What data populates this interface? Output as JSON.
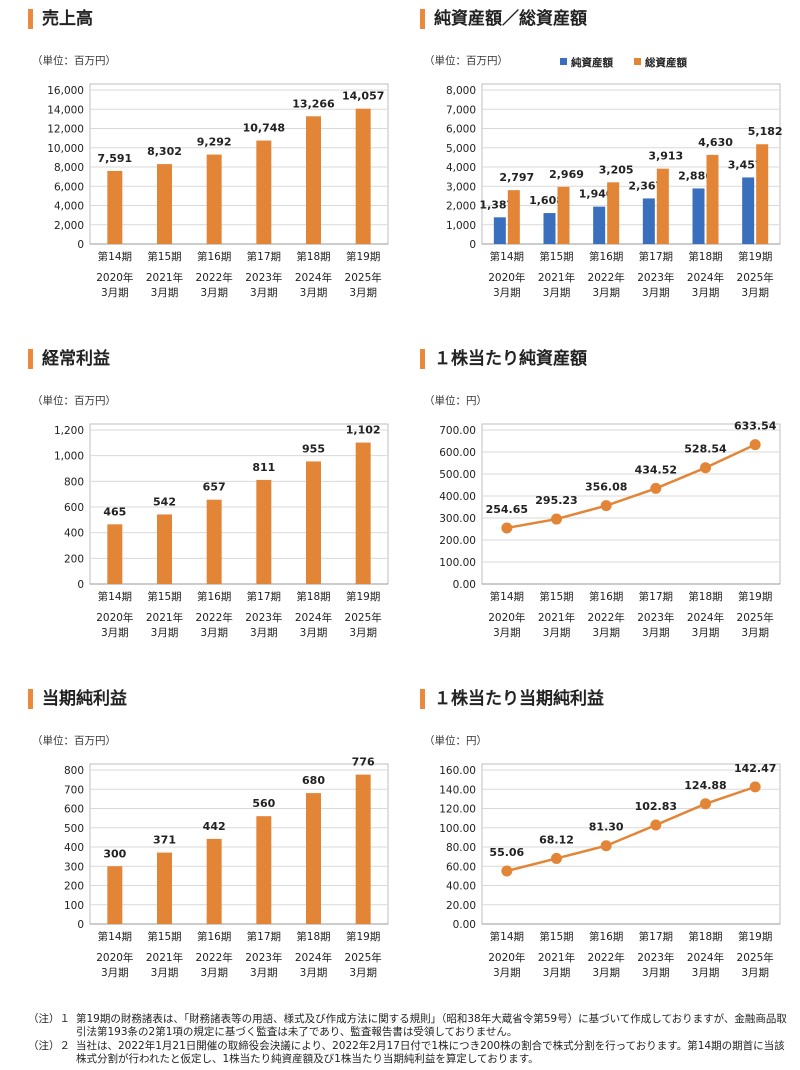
{
  "colors": {
    "orange": "#e38537",
    "blue": "#3a6fbe",
    "grid": "#d9d9d9",
    "axis": "#bfbfbf",
    "title_bar": "#e98a3c"
  },
  "chart_data": [
    {
      "type": "bar",
      "title": "売上高",
      "unit": "（単位：百万円）",
      "categories": [
        "第14期",
        "第15期",
        "第16期",
        "第17期",
        "第18期",
        "第19期"
      ],
      "category_sub1": [
        "2020年",
        "2021年",
        "2022年",
        "2023年",
        "2024年",
        "2025年"
      ],
      "category_sub2": [
        "3月期",
        "3月期",
        "3月期",
        "3月期",
        "3月期",
        "3月期"
      ],
      "series": [
        {
          "values": [
            7591,
            8302,
            9292,
            10748,
            13266,
            14057
          ],
          "labels": [
            "7,591",
            "8,302",
            "9,292",
            "10,748",
            "13,266",
            "14,057"
          ],
          "color": "#e38537"
        }
      ],
      "ylim": [
        0,
        16000
      ],
      "yticks": [
        "0",
        "2,000",
        "4,000",
        "6,000",
        "8,000",
        "10,000",
        "12,000",
        "14,000",
        "16,000"
      ],
      "grid": true
    },
    {
      "type": "bar",
      "title": "純資産額／総資産額",
      "unit": "（単位：百万円）",
      "categories": [
        "第14期",
        "第15期",
        "第16期",
        "第17期",
        "第18期",
        "第19期"
      ],
      "category_sub1": [
        "2020年",
        "2021年",
        "2022年",
        "2023年",
        "2024年",
        "2025年"
      ],
      "category_sub2": [
        "3月期",
        "3月期",
        "3月期",
        "3月期",
        "3月期",
        "3月期"
      ],
      "series": [
        {
          "name": "純資産額",
          "values": [
            1387,
            1608,
            1940,
            2367,
            2886,
            3457
          ],
          "labels": [
            "1,387",
            "1,608",
            "1,940",
            "2,367",
            "2,886",
            "3,457"
          ],
          "color": "#3a6fbe"
        },
        {
          "name": "総資産額",
          "values": [
            2797,
            2969,
            3205,
            3913,
            4630,
            5182
          ],
          "labels": [
            "2,797",
            "2,969",
            "3,205",
            "3,913",
            "4,630",
            "5,182"
          ],
          "color": "#e38537"
        }
      ],
      "ylim": [
        0,
        8000
      ],
      "yticks": [
        "0",
        "1,000",
        "2,000",
        "3,000",
        "4,000",
        "5,000",
        "6,000",
        "7,000",
        "8,000"
      ],
      "legend": "top",
      "grid": true
    },
    {
      "type": "bar",
      "title": "経常利益",
      "unit": "（単位：百万円）",
      "categories": [
        "第14期",
        "第15期",
        "第16期",
        "第17期",
        "第18期",
        "第19期"
      ],
      "category_sub1": [
        "2020年",
        "2021年",
        "2022年",
        "2023年",
        "2024年",
        "2025年"
      ],
      "category_sub2": [
        "3月期",
        "3月期",
        "3月期",
        "3月期",
        "3月期",
        "3月期"
      ],
      "series": [
        {
          "values": [
            465,
            542,
            657,
            811,
            955,
            1102
          ],
          "labels": [
            "465",
            "542",
            "657",
            "811",
            "955",
            "1,102"
          ],
          "color": "#e38537"
        }
      ],
      "ylim": [
        0,
        1200
      ],
      "yticks": [
        "0",
        "200",
        "400",
        "600",
        "800",
        "1,000",
        "1,200"
      ],
      "grid": true
    },
    {
      "type": "line",
      "title": "１株当たり純資産額",
      "unit": "（単位：円）",
      "categories": [
        "第14期",
        "第15期",
        "第16期",
        "第17期",
        "第18期",
        "第19期"
      ],
      "category_sub1": [
        "2020年",
        "2021年",
        "2022年",
        "2023年",
        "2024年",
        "2025年"
      ],
      "category_sub2": [
        "3月期",
        "3月期",
        "3月期",
        "3月期",
        "3月期",
        "3月期"
      ],
      "series": [
        {
          "values": [
            254.65,
            295.23,
            356.08,
            434.52,
            528.54,
            633.54
          ],
          "labels": [
            "254.65",
            "295.23",
            "356.08",
            "434.52",
            "528.54",
            "633.54"
          ],
          "color": "#e38537"
        }
      ],
      "ylim": [
        0,
        700
      ],
      "yticks": [
        "0.00",
        "100.00",
        "200.00",
        "300.00",
        "400.00",
        "500.00",
        "600.00",
        "700.00"
      ],
      "grid": true
    },
    {
      "type": "bar",
      "title": "当期純利益",
      "unit": "（単位：百万円）",
      "categories": [
        "第14期",
        "第15期",
        "第16期",
        "第17期",
        "第18期",
        "第19期"
      ],
      "category_sub1": [
        "2020年",
        "2021年",
        "2022年",
        "2023年",
        "2024年",
        "2025年"
      ],
      "category_sub2": [
        "3月期",
        "3月期",
        "3月期",
        "3月期",
        "3月期",
        "3月期"
      ],
      "series": [
        {
          "values": [
            300,
            371,
            442,
            560,
            680,
            776
          ],
          "labels": [
            "300",
            "371",
            "442",
            "560",
            "680",
            "776"
          ],
          "color": "#e38537"
        }
      ],
      "ylim": [
        0,
        800
      ],
      "yticks": [
        "0",
        "100",
        "200",
        "300",
        "400",
        "500",
        "600",
        "700",
        "800"
      ],
      "grid": true
    },
    {
      "type": "line",
      "title": "１株当たり当期純利益",
      "unit": "（単位：円）",
      "categories": [
        "第14期",
        "第15期",
        "第16期",
        "第17期",
        "第18期",
        "第19期"
      ],
      "category_sub1": [
        "2020年",
        "2021年",
        "2022年",
        "2023年",
        "2024年",
        "2025年"
      ],
      "category_sub2": [
        "3月期",
        "3月期",
        "3月期",
        "3月期",
        "3月期",
        "3月期"
      ],
      "series": [
        {
          "values": [
            55.06,
            68.12,
            81.3,
            102.83,
            124.88,
            142.47
          ],
          "labels": [
            "55.06",
            "68.12",
            "81.30",
            "102.83",
            "124.88",
            "142.47"
          ],
          "color": "#e38537"
        }
      ],
      "ylim": [
        0,
        160
      ],
      "yticks": [
        "0.00",
        "20.00",
        "40.00",
        "60.00",
        "80.00",
        "100.00",
        "120.00",
        "140.00",
        "160.00"
      ],
      "grid": true
    }
  ],
  "notes": [
    {
      "label": "（注）１",
      "text": "第19期の財務諸表は、「財務諸表等の用語、様式及び作成方法に関する規則」（昭和38年大蔵省令第59号）に基づいて作成しておりますが、金融商品取引法第193条の2第1項の規定に基づく監査は未了であり、監査報告書は受領しておりません。"
    },
    {
      "label": "（注）２",
      "text": "当社は、2022年1月21日開催の取締役会決議により、2022年2月17日付で1株につき200株の割合で株式分割を行っております。第14期の期首に当該株式分割が行われたと仮定し、1株当たり純資産額及び1株当たり当期純利益を算定しております。"
    }
  ]
}
